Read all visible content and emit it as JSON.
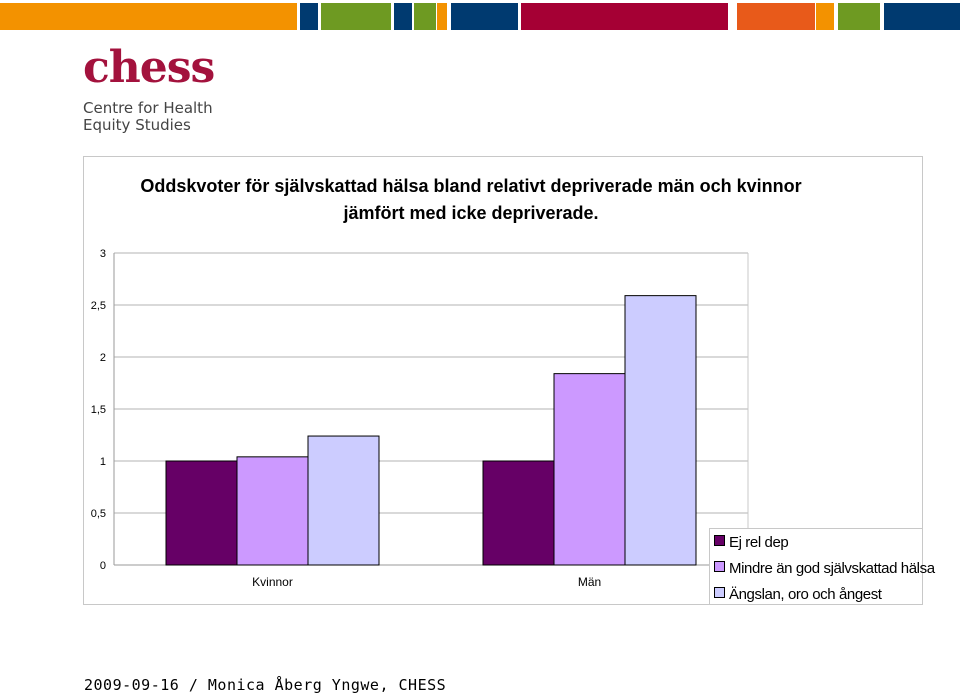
{
  "header": {
    "brand_colors": [
      "#f39200",
      "#003a70",
      "#6e9a22",
      "#a50034",
      "#e85a1a"
    ]
  },
  "logo": {
    "wordmark": "chess",
    "subtitle_line1": "Centre for Health",
    "subtitle_line2": "Equity Studies"
  },
  "chart_data": {
    "type": "bar",
    "title_line1": "Oddskvoter för självskattad hälsa bland relativt depriverade män och kvinnor",
    "title_line2": "jämfört med icke depriverade.",
    "categories": [
      "Kvinnor",
      "Män"
    ],
    "series": [
      {
        "name": "Ej rel dep",
        "color": "#660066",
        "values": [
          1.0,
          1.0
        ]
      },
      {
        "name": "Mindre än god självskattad hälsa",
        "color": "#cc99ff",
        "values": [
          1.04,
          1.84
        ]
      },
      {
        "name": "Ängslan, oro och ångest",
        "color": "#ccccff",
        "values": [
          1.24,
          2.59
        ]
      }
    ],
    "y_ticks": [
      "0",
      "0,5",
      "1",
      "1,5",
      "2",
      "2,5",
      "3"
    ],
    "ylim": [
      0,
      3
    ],
    "grid": true,
    "legend_position": "bottom-right"
  },
  "footer": {
    "text": "2009-09-16 / Monica Åberg Yngwe, CHESS"
  }
}
